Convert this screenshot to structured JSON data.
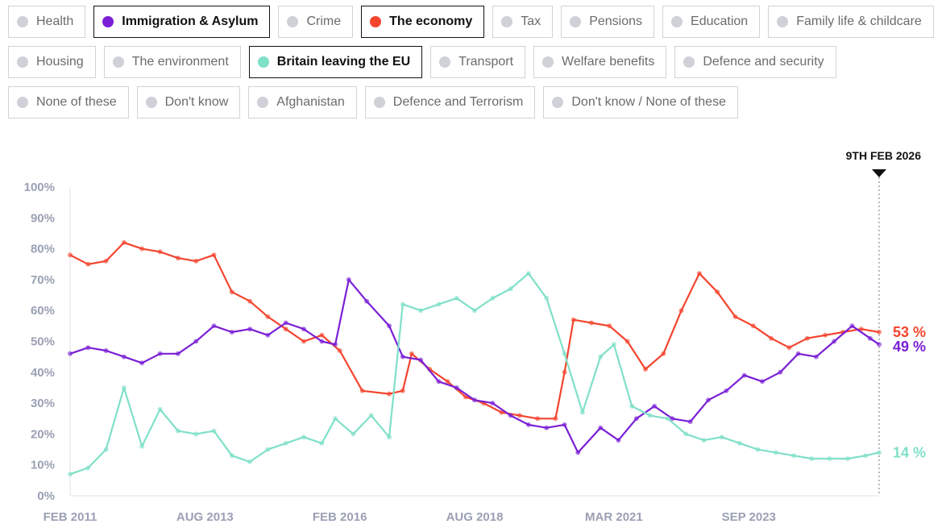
{
  "chips": [
    [
      {
        "label": "Health",
        "active": false
      },
      {
        "label": "Immigration & Asylum",
        "active": true,
        "color": "#7a1fd6"
      },
      {
        "label": "Crime",
        "active": false
      },
      {
        "label": "The economy",
        "active": true,
        "color": "#f4442e"
      },
      {
        "label": "Tax",
        "active": false
      },
      {
        "label": "Pensions",
        "active": false
      },
      {
        "label": "Education",
        "active": false
      },
      {
        "label": "Family life & childcare",
        "active": false
      }
    ],
    [
      {
        "label": "Housing",
        "active": false
      },
      {
        "label": "The environment",
        "active": false
      },
      {
        "label": "Britain leaving the EU",
        "active": true,
        "color": "#7fe0c8"
      },
      {
        "label": "Transport",
        "active": false
      },
      {
        "label": "Welfare benefits",
        "active": false
      },
      {
        "label": "Defence and security",
        "active": false
      }
    ],
    [
      {
        "label": "None of these",
        "active": false
      },
      {
        "label": "Don't know",
        "active": false
      },
      {
        "label": "Afghanistan",
        "active": false
      },
      {
        "label": "Defence and Terrorism",
        "active": false
      },
      {
        "label": "Don't know / None of these",
        "active": false
      }
    ]
  ],
  "chart_data": {
    "type": "line",
    "title": "",
    "xlabel": "",
    "ylabel": "",
    "ylim": [
      0,
      100
    ],
    "xlim": [
      "2011-02",
      "2026-02"
    ],
    "y_ticks": [
      "0%",
      "10%",
      "20%",
      "30%",
      "40%",
      "50%",
      "60%",
      "70%",
      "80%",
      "90%",
      "100%"
    ],
    "x_ticks": [
      "FEB 2011",
      "AUG 2013",
      "FEB 2016",
      "AUG 2018",
      "MAR 2021",
      "SEP 2023"
    ],
    "x_tick_dates": [
      "2011-02",
      "2013-08",
      "2016-02",
      "2018-08",
      "2021-03",
      "2023-09"
    ],
    "marker_label": "9TH FEB 2026",
    "marker_date": "2026-02",
    "grid": false,
    "series": [
      {
        "name": "The economy",
        "color": "#f4442e",
        "end_label": "53 %",
        "points": [
          [
            "2011-02",
            78
          ],
          [
            "2011-06",
            75
          ],
          [
            "2011-10",
            76
          ],
          [
            "2012-02",
            82
          ],
          [
            "2012-06",
            80
          ],
          [
            "2012-10",
            79
          ],
          [
            "2013-02",
            77
          ],
          [
            "2013-06",
            76
          ],
          [
            "2013-10",
            78
          ],
          [
            "2014-02",
            66
          ],
          [
            "2014-06",
            63
          ],
          [
            "2014-10",
            58
          ],
          [
            "2015-02",
            54
          ],
          [
            "2015-06",
            50
          ],
          [
            "2015-10",
            52
          ],
          [
            "2016-02",
            47
          ],
          [
            "2016-07",
            34
          ],
          [
            "2017-01",
            33
          ],
          [
            "2017-04",
            34
          ],
          [
            "2017-06",
            46
          ],
          [
            "2017-10",
            41
          ],
          [
            "2018-02",
            37
          ],
          [
            "2018-06",
            32
          ],
          [
            "2018-10",
            30
          ],
          [
            "2019-02",
            27
          ],
          [
            "2019-06",
            26
          ],
          [
            "2019-10",
            25
          ],
          [
            "2020-02",
            25
          ],
          [
            "2020-04",
            40
          ],
          [
            "2020-06",
            57
          ],
          [
            "2020-10",
            56
          ],
          [
            "2021-02",
            55
          ],
          [
            "2021-06",
            50
          ],
          [
            "2021-10",
            41
          ],
          [
            "2022-02",
            46
          ],
          [
            "2022-06",
            60
          ],
          [
            "2022-10",
            72
          ],
          [
            "2023-02",
            66
          ],
          [
            "2023-06",
            58
          ],
          [
            "2023-10",
            55
          ],
          [
            "2024-02",
            51
          ],
          [
            "2024-06",
            48
          ],
          [
            "2024-10",
            51
          ],
          [
            "2025-02",
            52
          ],
          [
            "2025-06",
            53
          ],
          [
            "2025-10",
            54
          ],
          [
            "2026-02",
            53
          ]
        ]
      },
      {
        "name": "Immigration & Asylum",
        "color": "#7a1fd6",
        "end_label": "49 %",
        "points": [
          [
            "2011-02",
            46
          ],
          [
            "2011-06",
            48
          ],
          [
            "2011-10",
            47
          ],
          [
            "2012-02",
            45
          ],
          [
            "2012-06",
            43
          ],
          [
            "2012-10",
            46
          ],
          [
            "2013-02",
            46
          ],
          [
            "2013-06",
            50
          ],
          [
            "2013-10",
            55
          ],
          [
            "2014-02",
            53
          ],
          [
            "2014-06",
            54
          ],
          [
            "2014-10",
            52
          ],
          [
            "2015-02",
            56
          ],
          [
            "2015-06",
            54
          ],
          [
            "2015-10",
            50
          ],
          [
            "2016-01",
            49
          ],
          [
            "2016-04",
            70
          ],
          [
            "2016-08",
            63
          ],
          [
            "2017-01",
            55
          ],
          [
            "2017-04",
            45
          ],
          [
            "2017-08",
            44
          ],
          [
            "2017-12",
            37
          ],
          [
            "2018-04",
            35
          ],
          [
            "2018-08",
            31
          ],
          [
            "2018-12",
            30
          ],
          [
            "2019-04",
            26
          ],
          [
            "2019-08",
            23
          ],
          [
            "2019-12",
            22
          ],
          [
            "2020-04",
            23
          ],
          [
            "2020-07",
            14
          ],
          [
            "2020-12",
            22
          ],
          [
            "2021-04",
            18
          ],
          [
            "2021-08",
            25
          ],
          [
            "2021-12",
            29
          ],
          [
            "2022-04",
            25
          ],
          [
            "2022-08",
            24
          ],
          [
            "2022-12",
            31
          ],
          [
            "2023-04",
            34
          ],
          [
            "2023-08",
            39
          ],
          [
            "2023-12",
            37
          ],
          [
            "2024-04",
            40
          ],
          [
            "2024-08",
            46
          ],
          [
            "2024-12",
            45
          ],
          [
            "2025-04",
            50
          ],
          [
            "2025-08",
            55
          ],
          [
            "2025-12",
            51
          ],
          [
            "2026-02",
            49
          ]
        ]
      },
      {
        "name": "Britain leaving the EU",
        "color": "#7fe0c8",
        "end_label": "14 %",
        "points": [
          [
            "2011-02",
            7
          ],
          [
            "2011-06",
            9
          ],
          [
            "2011-10",
            15
          ],
          [
            "2012-02",
            35
          ],
          [
            "2012-06",
            16
          ],
          [
            "2012-10",
            28
          ],
          [
            "2013-02",
            21
          ],
          [
            "2013-06",
            20
          ],
          [
            "2013-10",
            21
          ],
          [
            "2014-02",
            13
          ],
          [
            "2014-06",
            11
          ],
          [
            "2014-10",
            15
          ],
          [
            "2015-02",
            17
          ],
          [
            "2015-06",
            19
          ],
          [
            "2015-10",
            17
          ],
          [
            "2016-01",
            25
          ],
          [
            "2016-05",
            20
          ],
          [
            "2016-09",
            26
          ],
          [
            "2017-01",
            19
          ],
          [
            "2017-04",
            62
          ],
          [
            "2017-08",
            60
          ],
          [
            "2017-12",
            62
          ],
          [
            "2018-04",
            64
          ],
          [
            "2018-08",
            60
          ],
          [
            "2018-12",
            64
          ],
          [
            "2019-04",
            67
          ],
          [
            "2019-08",
            72
          ],
          [
            "2019-12",
            64
          ],
          [
            "2020-04",
            46
          ],
          [
            "2020-08",
            27
          ],
          [
            "2020-12",
            45
          ],
          [
            "2021-03",
            49
          ],
          [
            "2021-07",
            29
          ],
          [
            "2021-11",
            26
          ],
          [
            "2022-03",
            25
          ],
          [
            "2022-07",
            20
          ],
          [
            "2022-11",
            18
          ],
          [
            "2023-03",
            19
          ],
          [
            "2023-07",
            17
          ],
          [
            "2023-11",
            15
          ],
          [
            "2024-03",
            14
          ],
          [
            "2024-07",
            13
          ],
          [
            "2024-11",
            12
          ],
          [
            "2025-03",
            12
          ],
          [
            "2025-07",
            12
          ],
          [
            "2025-11",
            13
          ],
          [
            "2026-02",
            14
          ]
        ]
      }
    ]
  }
}
